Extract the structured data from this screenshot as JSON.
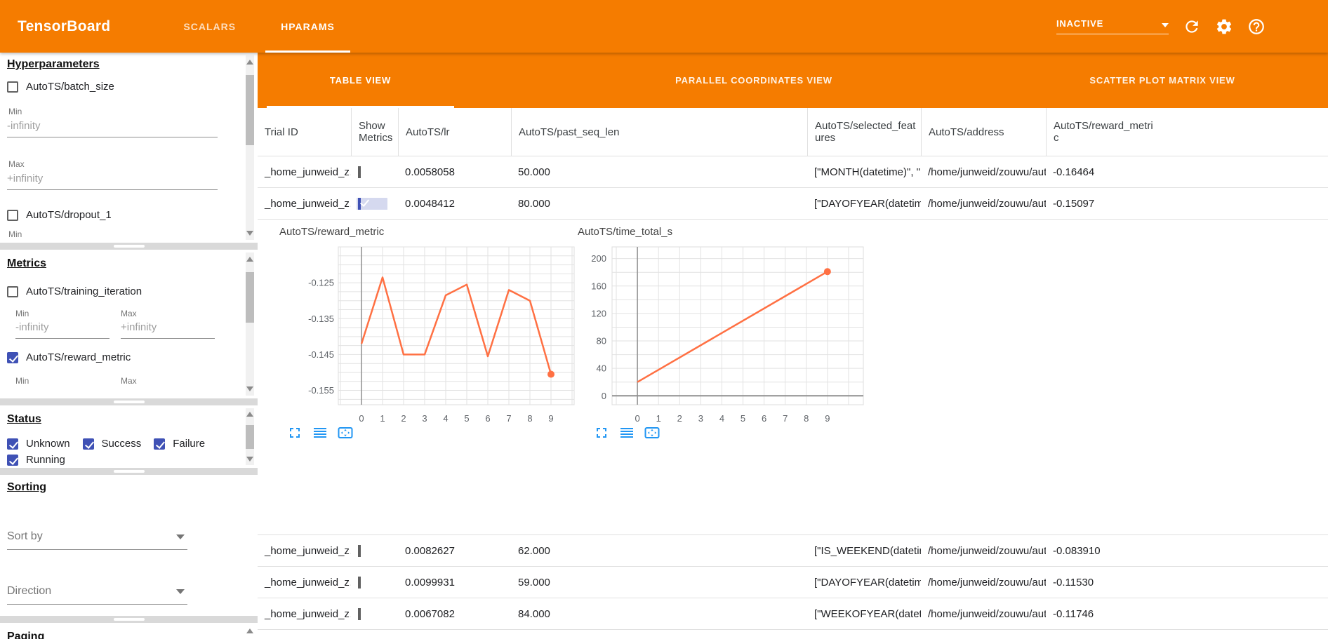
{
  "colors": {
    "toolbar_orange": "#F57C00",
    "checkbox_indigo": "#3F51B5",
    "chart_line_orange": "#FF7043",
    "chart_tool_blue": "#2196F3"
  },
  "toolbar": {
    "title": "TensorBoard",
    "tabs": [
      {
        "label": "SCALARS",
        "active": false
      },
      {
        "label": "HPARAMS",
        "active": true
      }
    ],
    "run_selector_value": "INACTIVE",
    "icons": [
      "refresh",
      "settings-gear",
      "help"
    ]
  },
  "sidebar": {
    "hyperparameters": {
      "heading": "Hyperparameters",
      "param1_label": "AutoTS/batch_size",
      "param1_checked": false,
      "min_label": "Min",
      "min_value": "-infinity",
      "max_label": "Max",
      "max_value": "+infinity",
      "param2_label": "AutoTS/dropout_1",
      "param2_checked": false,
      "param2_min_label": "Min"
    },
    "metrics": {
      "heading": "Metrics",
      "metric1_label": "AutoTS/training_iteration",
      "metric1_checked": false,
      "min_label": "Min",
      "max_label": "Max",
      "min_value": "-infinity",
      "max_value": "+infinity",
      "metric2_label": "AutoTS/reward_metric",
      "metric2_checked": true,
      "metric2_min_label": "Min",
      "metric2_max_label": "Max"
    },
    "status": {
      "heading": "Status",
      "options": [
        {
          "label": "Unknown",
          "checked": true
        },
        {
          "label": "Success",
          "checked": true
        },
        {
          "label": "Failure",
          "checked": true
        },
        {
          "label": "Running",
          "checked": true
        }
      ]
    },
    "sorting": {
      "heading": "Sorting",
      "sort_by_placeholder": "Sort by",
      "direction_placeholder": "Direction"
    },
    "paging": {
      "heading": "Paging"
    }
  },
  "main": {
    "view_tabs": [
      {
        "label": "TABLE VIEW",
        "active": true
      },
      {
        "label": "PARALLEL COORDINATES VIEW",
        "active": false
      },
      {
        "label": "SCATTER PLOT MATRIX VIEW",
        "active": false
      }
    ],
    "table": {
      "columns": [
        "Trial ID",
        "Show Metrics",
        "AutoTS/lr",
        "AutoTS/past_seq_len",
        "AutoTS/selected_features",
        "AutoTS/address",
        "AutoTS/reward_metric"
      ],
      "rows": [
        {
          "trial_id": "_home_junweid_z…",
          "show_metrics_checked": false,
          "lr": "0.0058058",
          "past_seq_len": "50.000",
          "selected_features": "[\"MONTH(datetime)\", \"I…",
          "address": "/home/junweid/zouwu/aut…",
          "reward_metric": "-0.16464",
          "expanded": false
        },
        {
          "trial_id": "_home_junweid_z…",
          "show_metrics_checked": true,
          "lr": "0.0048412",
          "past_seq_len": "80.000",
          "selected_features": "[\"DAYOFYEAR(datetime…",
          "address": "/home/junweid/zouwu/aut…",
          "reward_metric": "-0.15097",
          "expanded": true
        },
        {
          "trial_id": "_home_junweid_z…",
          "show_metrics_checked": false,
          "lr": "0.0082627",
          "past_seq_len": "62.000",
          "selected_features": "[\"IS_WEEKEND(datetim…",
          "address": "/home/junweid/zouwu/aut…",
          "reward_metric": "-0.083910",
          "expanded": false
        },
        {
          "trial_id": "_home_junweid_z…",
          "show_metrics_checked": false,
          "lr": "0.0099931",
          "past_seq_len": "59.000",
          "selected_features": "[\"DAYOFYEAR(datetime…",
          "address": "/home/junweid/zouwu/aut…",
          "reward_metric": "-0.11530",
          "expanded": false
        },
        {
          "trial_id": "_home_junweid_z…",
          "show_metrics_checked": false,
          "lr": "0.0067082",
          "past_seq_len": "84.000",
          "selected_features": "[\"WEEKOFYEAR(dateti…",
          "address": "/home/junweid/zouwu/aut…",
          "reward_metric": "-0.11746",
          "expanded": false
        }
      ]
    },
    "chart_tool_icons": [
      "fullscreen",
      "data-list",
      "fit-to-domain"
    ]
  },
  "chart_data": [
    {
      "type": "line",
      "title": "AutoTS/reward_metric",
      "x": [
        0,
        1,
        2,
        3,
        4,
        5,
        6,
        7,
        8,
        9
      ],
      "values": [
        -0.142,
        -0.1235,
        -0.145,
        -0.145,
        -0.1285,
        -0.1255,
        -0.1455,
        -0.127,
        -0.13,
        -0.1505
      ],
      "xlim": [
        -1.1,
        10.1
      ],
      "ylim": [
        -0.159,
        -0.115
      ],
      "x_grid_step": 1,
      "y_grid_step": 0.0025,
      "xtick_values": [
        0,
        1,
        2,
        3,
        4,
        5,
        6,
        7,
        8,
        9
      ],
      "xtick_labels": [
        "0",
        "1",
        "2",
        "3",
        "4",
        "5",
        "6",
        "7",
        "8",
        "9"
      ],
      "ytick_values": [
        -0.125,
        -0.135,
        -0.145,
        -0.155
      ],
      "ytick_labels": [
        "-0.125",
        "-0.135",
        "-0.145",
        "-0.155"
      ],
      "line_color": "#FF7043",
      "end_dot": true,
      "zero_x_axis_line": true,
      "zero_y_axis_line": false,
      "grid": true,
      "legend": "none"
    },
    {
      "type": "line",
      "title": "AutoTS/time_total_s",
      "x": [
        0,
        9
      ],
      "values": [
        20,
        181
      ],
      "xlim": [
        -1.2,
        10.7
      ],
      "ylim": [
        -13,
        217
      ],
      "x_grid_step": 1,
      "y_grid_step": 20,
      "xtick_values": [
        0,
        1,
        2,
        3,
        4,
        5,
        6,
        7,
        8,
        9
      ],
      "xtick_labels": [
        "0",
        "1",
        "2",
        "3",
        "4",
        "5",
        "6",
        "7",
        "8",
        "9"
      ],
      "ytick_values": [
        200,
        160,
        120,
        80,
        40,
        0
      ],
      "ytick_labels": [
        "200",
        "160",
        "120",
        "80",
        "40",
        "0"
      ],
      "line_color": "#FF7043",
      "end_dot": true,
      "zero_x_axis_line": true,
      "zero_y_axis_line": true,
      "grid": true,
      "legend": "none"
    }
  ]
}
